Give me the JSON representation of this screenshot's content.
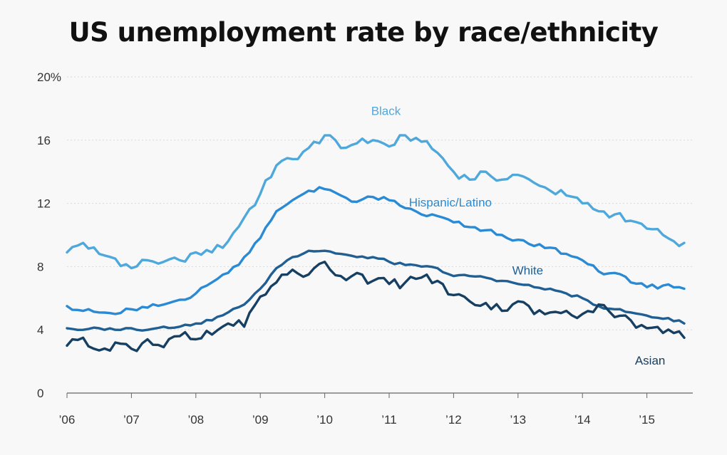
{
  "chart_data": {
    "type": "line",
    "title": "US unemployment rate by race/ethnicity",
    "ylim": [
      0,
      20
    ],
    "yticks": [
      0,
      4,
      8,
      12,
      16,
      20
    ],
    "ytick_labels": [
      "0",
      "4",
      "8",
      "12",
      "16",
      "20%"
    ],
    "xlim": [
      2006,
      2015.75
    ],
    "xticks": [
      2006,
      2007,
      2008,
      2009,
      2010,
      2011,
      2012,
      2013,
      2014,
      2015
    ],
    "xtick_labels": [
      "’06",
      "’07",
      "’08",
      "’09",
      "’10",
      "’11",
      "’12",
      "’13",
      "’14",
      "’15"
    ],
    "grid": "horizontal",
    "legend": "inline labels",
    "series": [
      {
        "name": "Black",
        "color": "#4fa8dc",
        "label_pos": [
          2010.95,
          17.6
        ],
        "points": [
          [
            2006,
            8.9
          ],
          [
            2006.25,
            9.5
          ],
          [
            2006.5,
            8.8
          ],
          [
            2006.75,
            8.5
          ],
          [
            2007,
            7.9
          ],
          [
            2007.25,
            8.4
          ],
          [
            2007.5,
            8.3
          ],
          [
            2007.75,
            8.4
          ],
          [
            2008,
            8.9
          ],
          [
            2008.25,
            8.9
          ],
          [
            2008.5,
            9.6
          ],
          [
            2008.75,
            11.1
          ],
          [
            2009,
            12.6
          ],
          [
            2009.25,
            14.4
          ],
          [
            2009.5,
            14.8
          ],
          [
            2009.75,
            15.5
          ],
          [
            2010,
            16.3
          ],
          [
            2010.25,
            15.5
          ],
          [
            2010.5,
            15.8
          ],
          [
            2010.75,
            16.0
          ],
          [
            2011,
            15.6
          ],
          [
            2011.25,
            16.3
          ],
          [
            2011.5,
            15.9
          ],
          [
            2011.75,
            15.2
          ],
          [
            2012,
            14.0
          ],
          [
            2012.25,
            13.5
          ],
          [
            2012.5,
            14.0
          ],
          [
            2012.75,
            13.5
          ],
          [
            2013,
            13.8
          ],
          [
            2013.25,
            13.3
          ],
          [
            2013.5,
            12.8
          ],
          [
            2013.75,
            12.5
          ],
          [
            2014,
            12.0
          ],
          [
            2014.25,
            11.5
          ],
          [
            2014.5,
            11.3
          ],
          [
            2014.75,
            10.9
          ],
          [
            2015,
            10.4
          ],
          [
            2015.25,
            10.0
          ],
          [
            2015.5,
            9.3
          ],
          [
            2015.58,
            9.5
          ]
        ]
      },
      {
        "name": "Hispanic/Latino",
        "color": "#2a8ad4",
        "label_pos": [
          2011.95,
          11.8
        ],
        "points": [
          [
            2006,
            5.5
          ],
          [
            2006.25,
            5.2
          ],
          [
            2006.5,
            5.1
          ],
          [
            2006.75,
            5.0
          ],
          [
            2007,
            5.3
          ],
          [
            2007.25,
            5.4
          ],
          [
            2007.5,
            5.6
          ],
          [
            2007.75,
            5.9
          ],
          [
            2008,
            6.3
          ],
          [
            2008.25,
            7.0
          ],
          [
            2008.5,
            7.6
          ],
          [
            2008.75,
            8.6
          ],
          [
            2009,
            9.8
          ],
          [
            2009.25,
            11.5
          ],
          [
            2009.5,
            12.2
          ],
          [
            2009.75,
            12.8
          ],
          [
            2010,
            12.9
          ],
          [
            2010.25,
            12.5
          ],
          [
            2010.5,
            12.1
          ],
          [
            2010.75,
            12.4
          ],
          [
            2011,
            12.2
          ],
          [
            2011.25,
            11.7
          ],
          [
            2011.5,
            11.3
          ],
          [
            2011.75,
            11.2
          ],
          [
            2012,
            10.8
          ],
          [
            2012.25,
            10.5
          ],
          [
            2012.5,
            10.3
          ],
          [
            2012.75,
            10.0
          ],
          [
            2013,
            9.7
          ],
          [
            2013.25,
            9.3
          ],
          [
            2013.5,
            9.2
          ],
          [
            2013.75,
            8.8
          ],
          [
            2014,
            8.4
          ],
          [
            2014.25,
            7.7
          ],
          [
            2014.5,
            7.6
          ],
          [
            2014.75,
            7.0
          ],
          [
            2015,
            6.7
          ],
          [
            2015.25,
            6.8
          ],
          [
            2015.5,
            6.7
          ],
          [
            2015.58,
            6.6
          ]
        ]
      },
      {
        "name": "White",
        "color": "#1f5f93",
        "label_pos": [
          2013.15,
          7.5
        ],
        "points": [
          [
            2006,
            4.1
          ],
          [
            2006.25,
            4.0
          ],
          [
            2006.5,
            4.1
          ],
          [
            2006.75,
            4.0
          ],
          [
            2007,
            4.1
          ],
          [
            2007.25,
            4.0
          ],
          [
            2007.5,
            4.2
          ],
          [
            2007.75,
            4.2
          ],
          [
            2008,
            4.4
          ],
          [
            2008.25,
            4.6
          ],
          [
            2008.5,
            5.1
          ],
          [
            2008.75,
            5.6
          ],
          [
            2009,
            6.6
          ],
          [
            2009.25,
            7.9
          ],
          [
            2009.5,
            8.6
          ],
          [
            2009.75,
            9.0
          ],
          [
            2010,
            9.0
          ],
          [
            2010.25,
            8.8
          ],
          [
            2010.5,
            8.6
          ],
          [
            2010.75,
            8.6
          ],
          [
            2011,
            8.3
          ],
          [
            2011.25,
            8.1
          ],
          [
            2011.5,
            8.0
          ],
          [
            2011.75,
            7.9
          ],
          [
            2012,
            7.4
          ],
          [
            2012.25,
            7.4
          ],
          [
            2012.5,
            7.3
          ],
          [
            2012.75,
            7.1
          ],
          [
            2013,
            6.9
          ],
          [
            2013.25,
            6.7
          ],
          [
            2013.5,
            6.6
          ],
          [
            2013.75,
            6.3
          ],
          [
            2014,
            6.0
          ],
          [
            2014.25,
            5.5
          ],
          [
            2014.5,
            5.3
          ],
          [
            2014.75,
            5.1
          ],
          [
            2015,
            4.9
          ],
          [
            2015.25,
            4.7
          ],
          [
            2015.5,
            4.6
          ],
          [
            2015.58,
            4.4
          ]
        ]
      },
      {
        "name": "Asian",
        "color": "#163f62",
        "label_pos": [
          2015.05,
          1.8
        ],
        "points": [
          [
            2006,
            3.0
          ],
          [
            2006.25,
            3.5
          ],
          [
            2006.5,
            2.7
          ],
          [
            2006.75,
            3.2
          ],
          [
            2007,
            2.8
          ],
          [
            2007.25,
            3.4
          ],
          [
            2007.5,
            2.9
          ],
          [
            2007.75,
            3.6
          ],
          [
            2008,
            3.4
          ],
          [
            2008.25,
            3.7
          ],
          [
            2008.5,
            4.4
          ],
          [
            2008.75,
            4.2
          ],
          [
            2009,
            6.1
          ],
          [
            2009.25,
            7.0
          ],
          [
            2009.5,
            7.8
          ],
          [
            2009.75,
            7.5
          ],
          [
            2010,
            8.3
          ],
          [
            2010.25,
            7.4
          ],
          [
            2010.5,
            7.6
          ],
          [
            2010.75,
            7.1
          ],
          [
            2011,
            6.9
          ],
          [
            2011.25,
            7.0
          ],
          [
            2011.5,
            7.3
          ],
          [
            2011.75,
            7.1
          ],
          [
            2012,
            6.2
          ],
          [
            2012.25,
            5.8
          ],
          [
            2012.5,
            5.7
          ],
          [
            2012.75,
            5.2
          ],
          [
            2013,
            5.8
          ],
          [
            2013.25,
            5.0
          ],
          [
            2013.5,
            5.1
          ],
          [
            2013.75,
            5.2
          ],
          [
            2014,
            5.0
          ],
          [
            2014.25,
            5.6
          ],
          [
            2014.5,
            4.8
          ],
          [
            2014.75,
            4.6
          ],
          [
            2015,
            4.1
          ],
          [
            2015.25,
            3.8
          ],
          [
            2015.5,
            3.9
          ],
          [
            2015.58,
            3.5
          ]
        ]
      }
    ]
  }
}
